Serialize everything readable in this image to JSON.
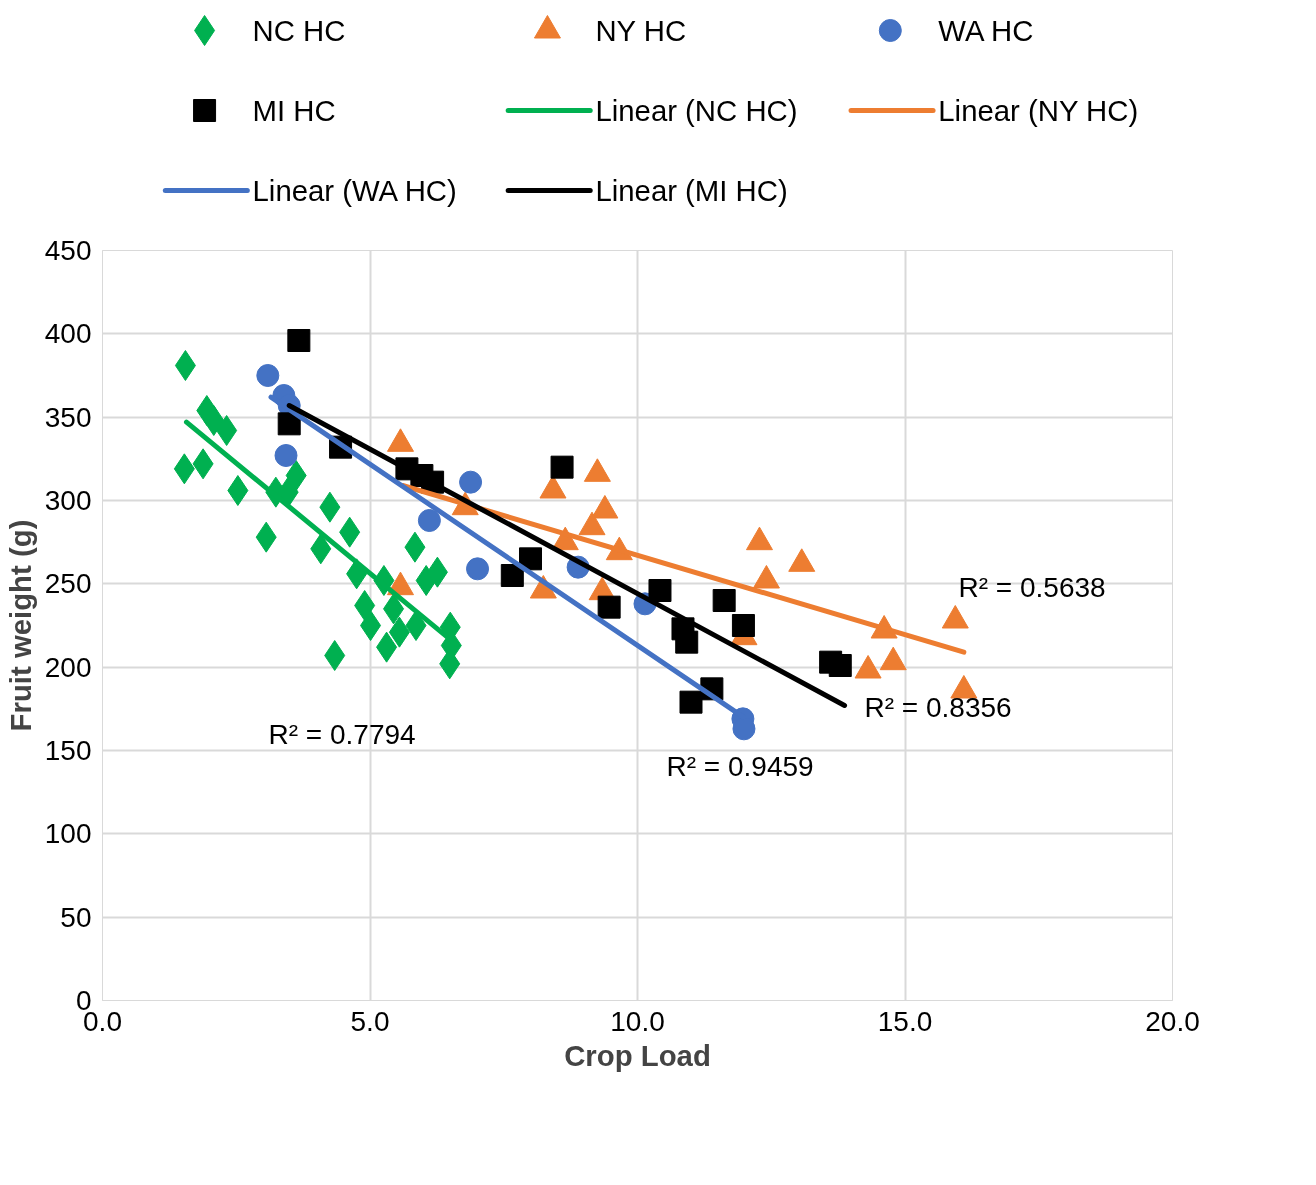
{
  "chart_data": {
    "type": "scatter",
    "xlabel": "Crop Load",
    "ylabel": "Fruit weight (g)",
    "xlim": [
      0,
      20
    ],
    "xticks": [
      {
        "value": 0,
        "label": "0.0"
      },
      {
        "value": 5,
        "label": "5.0"
      },
      {
        "value": 10,
        "label": "10.0"
      },
      {
        "value": 15,
        "label": "15.0"
      },
      {
        "value": 20,
        "label": "20.0"
      }
    ],
    "ylim": [
      0,
      450
    ],
    "yticks": [
      0,
      50,
      100,
      150,
      200,
      250,
      300,
      350,
      400,
      450
    ],
    "grid": true,
    "legend": "top",
    "series": [
      {
        "name": "NC HC",
        "color": "#00b050",
        "marker": "diamond",
        "x": [
          1.55,
          1.95,
          2.08,
          2.32,
          1.53,
          1.88,
          2.53,
          3.06,
          3.24,
          3.62,
          3.47,
          4.08,
          4.25,
          4.62,
          4.34,
          4.75,
          4.9,
          5.01,
          5.26,
          5.31,
          5.44,
          5.55,
          5.84,
          5.86,
          6.05,
          6.26,
          6.5,
          6.52,
          6.49
        ],
        "values": [
          381,
          354,
          348,
          342,
          319,
          322,
          306,
          278,
          305,
          315,
          305,
          271,
          296,
          281,
          207,
          256,
          237,
          225,
          252,
          212,
          235,
          221,
          272,
          225,
          252,
          257,
          224,
          213,
          202
        ]
      },
      {
        "name": "NY HC",
        "color": "#ed7d31",
        "marker": "triangle",
        "x": [
          5.57,
          5.57,
          6.78,
          8.42,
          8.24,
          8.65,
          9.25,
          9.39,
          9.15,
          9.66,
          9.34,
          12.28,
          13.07,
          12.41,
          11.99,
          14.61,
          14.31,
          14.78,
          15.94,
          16.1
        ],
        "values": [
          334,
          248,
          296,
          306,
          246,
          275,
          316,
          294,
          284,
          269,
          245,
          275,
          262,
          252,
          218,
          222,
          198,
          203,
          228,
          186
        ]
      },
      {
        "name": "WA HC",
        "color": "#4472c4",
        "marker": "circle",
        "x": [
          3.09,
          3.39,
          3.49,
          3.43,
          6.88,
          6.11,
          7.01,
          8.89,
          10.14,
          11.97,
          11.99
        ],
        "values": [
          375,
          363,
          357,
          327,
          311,
          288,
          259,
          260,
          238,
          169,
          163
        ]
      },
      {
        "name": "MI HC",
        "color": "#000000",
        "marker": "square",
        "x": [
          3.67,
          3.49,
          4.45,
          8.59,
          5.69,
          5.97,
          6.17,
          7.66,
          8.0,
          9.47,
          10.42,
          10.85,
          10.92,
          11.62,
          11.98,
          11.0,
          11.39,
          13.61,
          13.79
        ],
        "values": [
          396,
          346,
          332,
          320,
          319,
          315,
          311,
          255,
          265,
          236,
          246,
          223,
          215,
          240,
          225,
          179,
          187,
          203,
          201
        ]
      },
      {
        "name": "Linear (NC HC)",
        "type": "line",
        "color": "#00b050",
        "x": [
          1.57,
          6.6
        ],
        "values": [
          347,
          214
        ]
      },
      {
        "name": "Linear (NY HC)",
        "type": "line",
        "color": "#ed7d31",
        "x": [
          5.61,
          16.1
        ],
        "values": [
          309,
          209
        ]
      },
      {
        "name": "Linear (WA HC)",
        "type": "line",
        "color": "#4472c4",
        "x": [
          3.15,
          11.98
        ],
        "values": [
          362,
          170
        ]
      },
      {
        "name": "Linear (MI HC)",
        "type": "line",
        "color": "#000000",
        "x": [
          3.49,
          13.87
        ],
        "values": [
          357,
          177
        ]
      }
    ],
    "annotations": [
      "R² = 0.7794",
      "R² = 0.9459",
      "R² = 0.8356",
      "R² = 0.5638"
    ]
  }
}
